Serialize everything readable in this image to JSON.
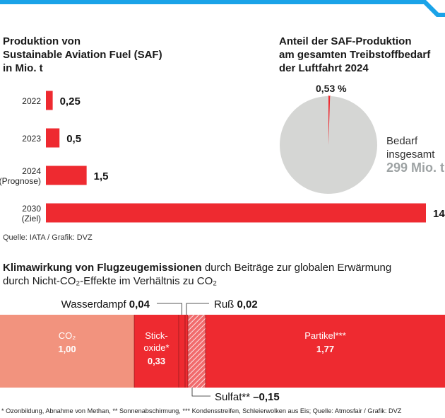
{
  "colors": {
    "accent_blue": "#1aa3e8",
    "bar_red": "#ee2a30",
    "pie_grey": "#d5d6d4",
    "co2_salmon": "#f2937e",
    "grey_text": "#9ea3a4"
  },
  "saf": {
    "title_lines": [
      "Produktion von",
      "Sustainable Aviation Fuel (SAF)",
      "in Mio. t"
    ],
    "source": "Quelle: IATA / Grafik: DVZ"
  },
  "share": {
    "title_lines": [
      "Anteil der SAF-Produktion",
      "am gesamten Treibstoffbedarf",
      "der Luftfahrt 2024"
    ],
    "pct_label": "0,53 %",
    "demand_lines": [
      "Bedarf",
      "insgesamt"
    ],
    "demand_value": "299 Mio. t"
  },
  "klima": {
    "title_bold": "Klimawirkung von Flugzeugemissionen",
    "title_rest": " durch Beiträge zur globalen Erwärmung",
    "title_line2": "durch Nicht-CO₂-Effekte im Verhältnis zu CO₂",
    "footnote": "* Ozonbildung, Abnahme von Methan, ** Sonnenabschirmung, *** Kondensstreifen, Schleierwolken aus Eis; Quelle: Atmosfair / Grafik: DVZ"
  },
  "chart_data": [
    {
      "type": "bar",
      "orientation": "horizontal",
      "title": "Produktion von Sustainable Aviation Fuel (SAF) in Mio. t",
      "categories": [
        [
          "2022"
        ],
        [
          "2023"
        ],
        [
          "2024",
          "(Prognose)"
        ],
        [
          "2030",
          "(Ziel)"
        ]
      ],
      "values": [
        0.25,
        0.5,
        1.5,
        14
      ],
      "value_labels": [
        "0,25",
        "0,5",
        "1,5",
        "14"
      ],
      "xlim": [
        0,
        14
      ],
      "grid": false,
      "color": "#ee2a30"
    },
    {
      "type": "pie",
      "title": "Anteil der SAF-Produktion am gesamten Treibstoffbedarf der Luftfahrt 2024",
      "slices": [
        {
          "label": "0,53 %",
          "value": 0.53,
          "color": "#ee2a30"
        },
        {
          "label": "Bedarf insgesamt 299 Mio. t",
          "value": 99.47,
          "color": "#d5d6d4"
        }
      ]
    },
    {
      "type": "bar",
      "stacked": true,
      "orientation": "horizontal",
      "title": "Klimawirkung von Flugzeugemissionen durch Beiträge zur globalen Erwärmung durch Nicht-CO₂-Effekte im Verhältnis zu CO₂",
      "segments": [
        {
          "name": "CO₂",
          "value": 1.0,
          "value_label": "1,00",
          "color": "#f2937e",
          "label_position": "inside"
        },
        {
          "name": "Stick-\noxide*",
          "value": 0.33,
          "value_label": "0,33",
          "color": "#ee2a30",
          "label_position": "inside"
        },
        {
          "name": "Wasserdampf",
          "value": 0.04,
          "value_label": "0,04",
          "color": "#ee2a30",
          "label_position": "above"
        },
        {
          "name": "Ruß",
          "value": 0.02,
          "value_label": "0,02",
          "color": "#ee2a30",
          "label_position": "above"
        },
        {
          "name": "Sulfat**",
          "value": -0.15,
          "value_label": "–0,15",
          "color": "#ee2a30",
          "hatched": true,
          "label_position": "below"
        },
        {
          "name": "Partikel***",
          "value": 1.77,
          "value_label": "1,77",
          "color": "#ee2a30",
          "label_position": "inside"
        }
      ]
    }
  ]
}
